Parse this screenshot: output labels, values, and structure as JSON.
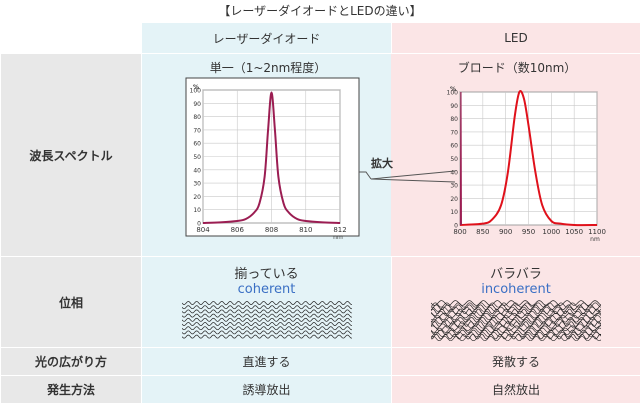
{
  "page_title": "【レーザーダイオードとLEDの違い】",
  "header": {
    "col_laser": "レーザーダイオード",
    "col_led": "LED"
  },
  "rows": {
    "spectrum": {
      "label": "波長スペクトル",
      "laser_caption": "単一（1~2nm程度）",
      "led_caption": "ブロード（数10nm）",
      "zoom_label": "拡大"
    },
    "phase": {
      "label": "位相",
      "laser_text": "揃っている",
      "laser_en": "coherent",
      "led_text": "バラバラ",
      "led_en": "incoherent"
    },
    "spread": {
      "label": "光の広がり方",
      "laser": "直進する",
      "led": "発散する"
    },
    "emission": {
      "label": "発生方法",
      "laser": "誘導放出",
      "led": "自然放出"
    }
  },
  "chart_data": [
    {
      "type": "line",
      "title": "単一（1~2nm程度）",
      "ylabel": "%",
      "xlabel": "nm",
      "x_ticks": [
        "804",
        "806",
        "808",
        "810",
        "812"
      ],
      "y_ticks": [
        "0",
        "10",
        "20",
        "30",
        "40",
        "50",
        "60",
        "70",
        "80",
        "90",
        "100"
      ],
      "xlim": [
        804,
        812
      ],
      "ylim": [
        0,
        100
      ],
      "grid": true,
      "color": "#9b1d52",
      "x": [
        804,
        805,
        806,
        806.5,
        807,
        807.3,
        807.6,
        807.8,
        808,
        808.2,
        808.4,
        808.7,
        809,
        809.5,
        810,
        811,
        812
      ],
      "y": [
        0,
        0.5,
        1.5,
        3,
        8,
        15,
        35,
        70,
        98,
        70,
        35,
        15,
        8,
        3,
        1.5,
        0.5,
        0
      ]
    },
    {
      "type": "line",
      "title": "ブロード（数10nm）",
      "ylabel": "%",
      "xlabel": "nm",
      "x_ticks": [
        "800",
        "850",
        "900",
        "950",
        "1000",
        "1050",
        "1100"
      ],
      "y_ticks": [
        "0",
        "10",
        "20",
        "30",
        "40",
        "50",
        "60",
        "70",
        "80",
        "90",
        "100"
      ],
      "xlim": [
        800,
        1100
      ],
      "ylim": [
        0,
        100
      ],
      "grid": true,
      "color": "#e0111b",
      "x": [
        800,
        850,
        870,
        890,
        905,
        920,
        930,
        940,
        950,
        965,
        980,
        1000,
        1020,
        1050,
        1100
      ],
      "y": [
        0,
        1,
        4,
        15,
        40,
        82,
        100,
        95,
        75,
        40,
        15,
        3,
        1,
        0,
        0
      ],
      "inset_spike": {
        "x": [
          801,
          802,
          803
        ],
        "y": [
          0,
          100,
          0
        ],
        "color": "#9b1d52"
      }
    }
  ],
  "colors": {
    "row_head_bg": "#e8e8e8",
    "laser_bg": "#e4f3f7",
    "led_bg": "#fbe5e6",
    "accent_blue": "#3a6fc4"
  }
}
